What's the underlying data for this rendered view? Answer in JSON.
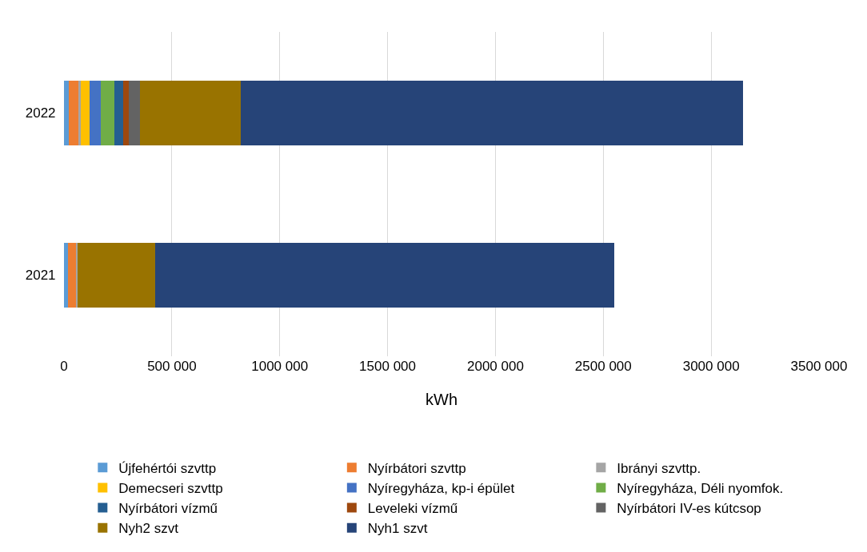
{
  "chart_data": {
    "type": "bar",
    "orientation": "horizontal",
    "stacked": true,
    "xlabel": "kWh",
    "categories": [
      "2022",
      "2021"
    ],
    "xlim": [
      0,
      3500000
    ],
    "xticks": [
      0,
      {
        "value": 500000,
        "label": "500 000"
      },
      {
        "value": 1000000,
        "label": "1000 000"
      },
      {
        "value": 1500000,
        "label": "1500 000"
      },
      {
        "value": 2000000,
        "label": "2000 000"
      },
      {
        "value": 2500000,
        "label": "2500 000"
      },
      {
        "value": 3000000,
        "label": "3000 000"
      },
      {
        "value": 3500000,
        "label": "3500 000"
      }
    ],
    "grid": "x",
    "legend": "bottom",
    "series": [
      {
        "name": "Újfehértói szvttp",
        "color": "#5b9bd5",
        "values": [
          22000,
          18000
        ]
      },
      {
        "name": "Nyírbátori szvttp",
        "color": "#ed7d31",
        "values": [
          44000,
          37000
        ]
      },
      {
        "name": "Ibrányi szvttp.",
        "color": "#a5a5a5",
        "values": [
          12000,
          8000
        ]
      },
      {
        "name": "Demecseri szvttp",
        "color": "#ffc000",
        "values": [
          42000,
          0
        ]
      },
      {
        "name": "Nyíregyháza, kp-i épület",
        "color": "#4472c4",
        "values": [
          51000,
          0
        ]
      },
      {
        "name": "Nyíregyháza, Déli nyomfok.",
        "color": "#70ad47",
        "values": [
          61000,
          0
        ]
      },
      {
        "name": "Nyírbátori vízmű",
        "color": "#255e91",
        "values": [
          41000,
          0
        ]
      },
      {
        "name": "Leveleki vízmű",
        "color": "#9e480e",
        "values": [
          28000,
          0
        ]
      },
      {
        "name": "Nyírbátori IV-es kútcsop",
        "color": "#636363",
        "values": [
          53000,
          0
        ]
      },
      {
        "name": "Nyh2 szvt",
        "color": "#997300",
        "values": [
          465000,
          361000
        ]
      },
      {
        "name": "Nyh1 szvt",
        "color": "#264478",
        "values": [
          2327000,
          2125000
        ]
      }
    ]
  }
}
